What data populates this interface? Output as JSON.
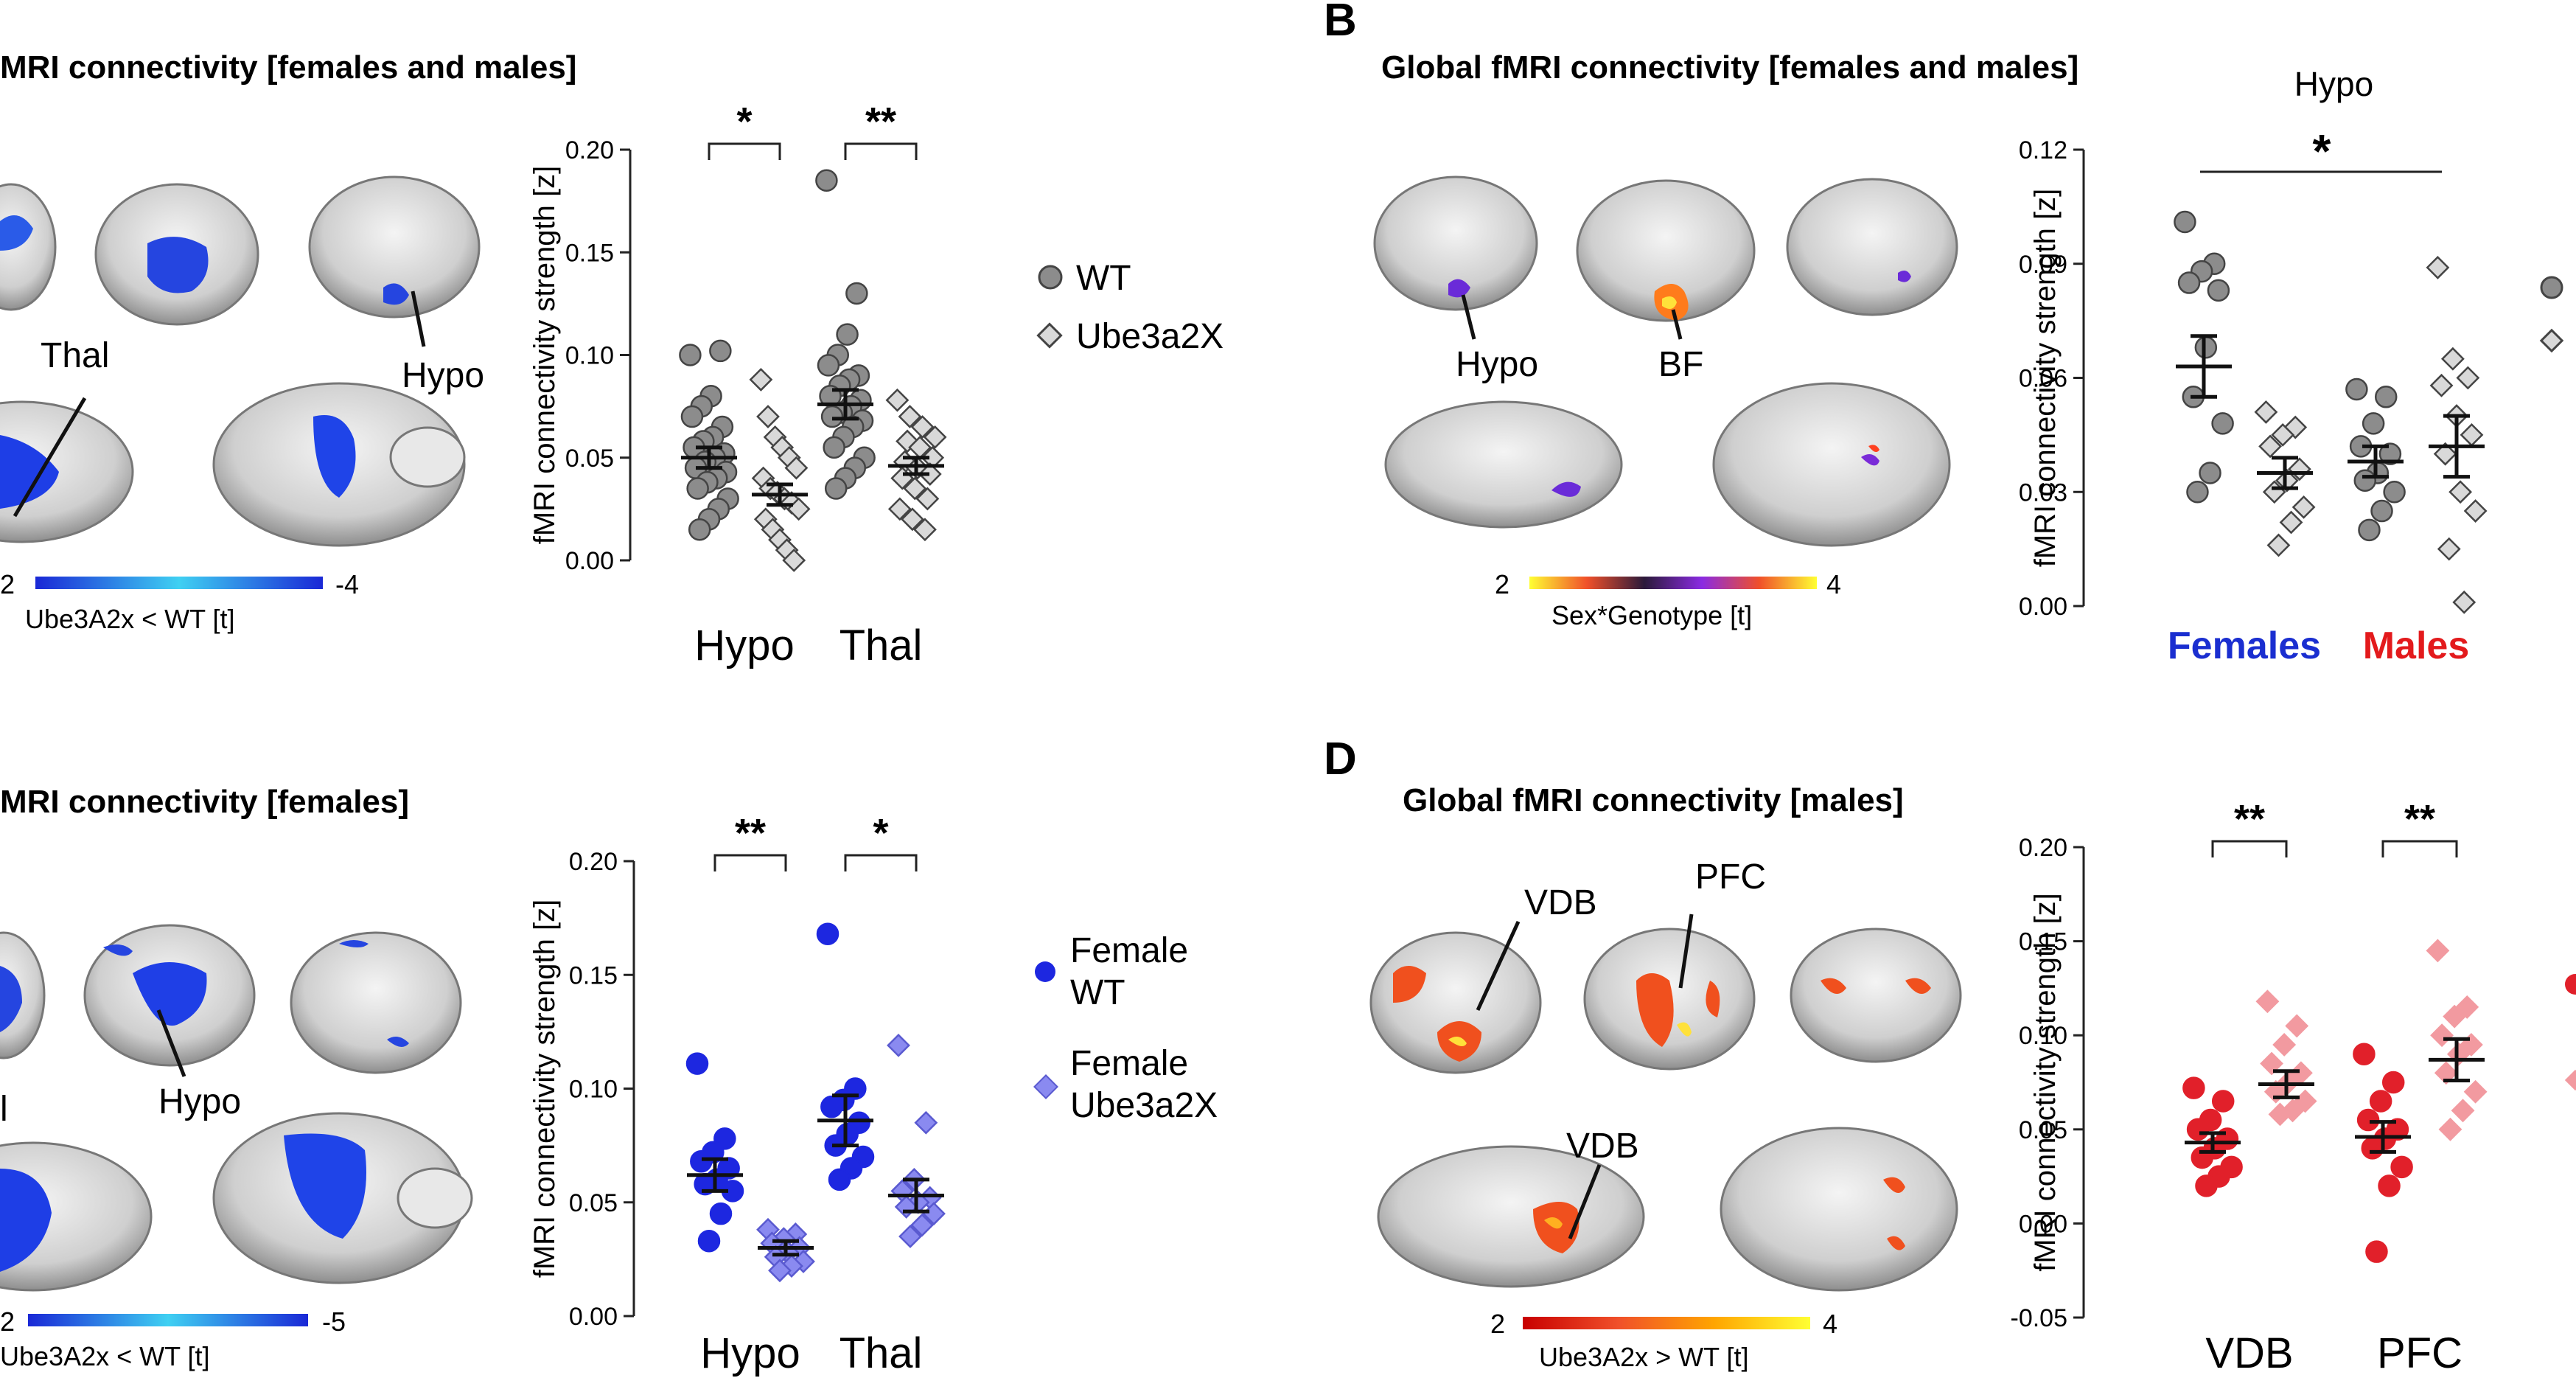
{
  "panels": {
    "A": {
      "title": "MRI connectivity [females and males]",
      "brain_labels": [
        "Thal",
        "Hypo"
      ],
      "colorbar": {
        "min": "2",
        "max": "-4",
        "label": "Ube3A2x < WT [t]",
        "colors": [
          "#1a28d6",
          "#3fd0f2",
          "#1a28d6"
        ]
      }
    },
    "B": {
      "letter": "B",
      "title": "Global fMRI connectivity [females and males]",
      "brain_labels": [
        "Hypo",
        "BF"
      ],
      "colorbar": {
        "min": "2",
        "max": "4",
        "label": "Sex*Genotype [t]",
        "colors": [
          "#ffff33",
          "#f0502a",
          "#2b1a3a",
          "#8a2be2",
          "#f0502a",
          "#ffff33"
        ]
      }
    },
    "C": {
      "title": "MRI connectivity [females]",
      "brain_labels": [
        "Hypo",
        "l"
      ],
      "colorbar": {
        "min": "2",
        "max": "-5",
        "label": "Ube3A2x < WT [t]",
        "colors": [
          "#1a28d6",
          "#3fd0f2",
          "#1a28d6"
        ]
      }
    },
    "D": {
      "letter": "D",
      "title": "Global fMRI connectivity [males]",
      "brain_labels": [
        "VDB",
        "PFC",
        "VDB"
      ],
      "colorbar": {
        "min": "2",
        "max": "4",
        "label": "Ube3A2x > WT [t]",
        "colors": [
          "#c80000",
          "#f0502a",
          "#ffa500",
          "#ffff33"
        ]
      }
    }
  },
  "legends": {
    "A": [
      {
        "label": "WT"
      },
      {
        "label": "Ube3a2X"
      }
    ],
    "C": [
      {
        "label": "Female",
        "label2": "WT"
      },
      {
        "label": "Female",
        "label2": "Ube3a2X"
      }
    ]
  },
  "colors": {
    "wt_grey": "#8c8c8c",
    "ube_grey": "#d9d9d9",
    "female_wt": "#1d27e0",
    "female_ube": "#8a8af0",
    "male_wt": "#e1202a",
    "male_ube": "#f29aa0",
    "females_label": "#1a2ed0",
    "males_label": "#e31a1c"
  },
  "chart_data": [
    {
      "id": "A-chart",
      "type": "scatter",
      "ylabel": "fMRI connectivity strength [z]",
      "ylim": [
        0,
        0.2
      ],
      "yticks": [
        "0.00",
        "0.05",
        "0.10",
        "0.15",
        "0.20"
      ],
      "categories": [
        "Hypo",
        "Thal"
      ],
      "significance": [
        "*",
        "**"
      ],
      "series": [
        {
          "name": "WT",
          "marker": "circle",
          "means": [
            0.05,
            0.076
          ],
          "sem": [
            0.005,
            0.007
          ],
          "points": [
            [
              0.1,
              0.102,
              0.08,
              0.075,
              0.07,
              0.065,
              0.06,
              0.058,
              0.055,
              0.052,
              0.05,
              0.048,
              0.045,
              0.043,
              0.04,
              0.038,
              0.035,
              0.03,
              0.025,
              0.02,
              0.015
            ],
            [
              0.185,
              0.13,
              0.11,
              0.1,
              0.095,
              0.09,
              0.088,
              0.085,
              0.08,
              0.078,
              0.075,
              0.072,
              0.07,
              0.068,
              0.065,
              0.06,
              0.055,
              0.05,
              0.045,
              0.04,
              0.035
            ]
          ]
        },
        {
          "name": "Ube3a2X",
          "marker": "diamond",
          "means": [
            0.032,
            0.046
          ],
          "sem": [
            0.005,
            0.004
          ],
          "points": [
            [
              0.088,
              0.07,
              0.06,
              0.055,
              0.05,
              0.045,
              0.04,
              0.035,
              0.033,
              0.03,
              0.028,
              0.025,
              0.02,
              0.015,
              0.01,
              0.005,
              0.0
            ],
            [
              0.078,
              0.07,
              0.065,
              0.06,
              0.058,
              0.055,
              0.05,
              0.048,
              0.045,
              0.042,
              0.04,
              0.035,
              0.03,
              0.025,
              0.02,
              0.015
            ]
          ]
        }
      ]
    },
    {
      "id": "B-chart",
      "type": "scatter",
      "title": "Hypo",
      "ylabel": "fMRI connectivity strength [z]",
      "ylim": [
        0,
        0.12
      ],
      "yticks": [
        "0.00",
        "0.03",
        "0.06",
        "0.09",
        "0.12"
      ],
      "categories": [
        "Females",
        "Males"
      ],
      "significance": [
        "*"
      ],
      "series": [
        {
          "name": "WT",
          "marker": "circle",
          "means": [
            0.063,
            0.038
          ],
          "sem": [
            0.008,
            0.004
          ],
          "points": [
            [
              0.101,
              0.09,
              0.088,
              0.085,
              0.083,
              0.068,
              0.055,
              0.048,
              0.035,
              0.03
            ],
            [
              0.057,
              0.055,
              0.048,
              0.042,
              0.04,
              0.035,
              0.033,
              0.03,
              0.025,
              0.02
            ]
          ]
        },
        {
          "name": "Ube3a2X",
          "marker": "diamond",
          "means": [
            0.035,
            0.042
          ],
          "sem": [
            0.004,
            0.008
          ],
          "points": [
            [
              0.051,
              0.047,
              0.045,
              0.042,
              0.036,
              0.033,
              0.03,
              0.026,
              0.022,
              0.016
            ],
            [
              0.089,
              0.065,
              0.06,
              0.058,
              0.05,
              0.045,
              0.04,
              0.03,
              0.025,
              0.015,
              0.001
            ]
          ]
        }
      ]
    },
    {
      "id": "C-chart",
      "type": "scatter",
      "ylabel": "fMRI connectivity strength [z]",
      "ylim": [
        0,
        0.2
      ],
      "yticks": [
        "0.00",
        "0.05",
        "0.10",
        "0.15",
        "0.20"
      ],
      "categories": [
        "Hypo",
        "Thal"
      ],
      "significance": [
        "**",
        "*"
      ],
      "series": [
        {
          "name": "Female WT",
          "marker": "circle",
          "means": [
            0.062,
            0.086
          ],
          "sem": [
            0.007,
            0.011
          ],
          "points": [
            [
              0.111,
              0.078,
              0.072,
              0.068,
              0.065,
              0.06,
              0.058,
              0.055,
              0.045,
              0.033
            ],
            [
              0.168,
              0.1,
              0.095,
              0.092,
              0.085,
              0.08,
              0.075,
              0.07,
              0.065,
              0.06
            ]
          ]
        },
        {
          "name": "Female Ube3a2X",
          "marker": "diamond",
          "means": [
            0.03,
            0.053
          ],
          "sem": [
            0.003,
            0.007
          ],
          "points": [
            [
              0.038,
              0.036,
              0.034,
              0.032,
              0.03,
              0.028,
              0.026,
              0.024,
              0.022,
              0.02
            ],
            [
              0.119,
              0.085,
              0.06,
              0.055,
              0.052,
              0.05,
              0.048,
              0.045,
              0.04,
              0.035
            ]
          ]
        }
      ]
    },
    {
      "id": "D-chart",
      "type": "scatter",
      "ylabel": "fMRI connectivity strength [z]",
      "ylim": [
        -0.05,
        0.2
      ],
      "yticks": [
        "-0.05",
        "0.00",
        "0.05",
        "0.10",
        "0.15",
        "0.20"
      ],
      "categories": [
        "VDB",
        "PFC"
      ],
      "significance": [
        "**",
        "**"
      ],
      "series": [
        {
          "name": "Male WT",
          "marker": "circle",
          "means": [
            0.043,
            0.046
          ],
          "sem": [
            0.005,
            0.008
          ],
          "points": [
            [
              0.072,
              0.065,
              0.055,
              0.05,
              0.045,
              0.04,
              0.035,
              0.03,
              0.025,
              0.02
            ],
            [
              0.09,
              0.075,
              0.065,
              0.055,
              0.05,
              0.045,
              0.04,
              0.03,
              0.02,
              -0.015
            ]
          ]
        },
        {
          "name": "Male Ube3a2X",
          "marker": "diamond",
          "means": [
            0.074,
            0.087
          ],
          "sem": [
            0.007,
            0.011
          ],
          "points": [
            [
              0.118,
              0.105,
              0.095,
              0.085,
              0.08,
              0.075,
              0.07,
              0.065,
              0.06,
              0.058
            ],
            [
              0.145,
              0.115,
              0.11,
              0.1,
              0.095,
              0.09,
              0.08,
              0.07,
              0.06,
              0.05
            ]
          ]
        }
      ]
    }
  ]
}
